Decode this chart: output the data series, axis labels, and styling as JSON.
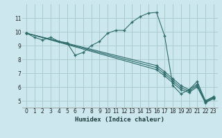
{
  "xlabel": "Humidex (Indice chaleur)",
  "bg_color": "#cce8ee",
  "grid_color": "#aacccc",
  "line_color": "#2e6b6b",
  "marker": "+",
  "xlim": [
    -0.5,
    23.5
  ],
  "ylim": [
    4.5,
    12.0
  ],
  "xticks": [
    0,
    1,
    2,
    3,
    4,
    5,
    6,
    7,
    8,
    9,
    10,
    11,
    12,
    13,
    14,
    15,
    16,
    17,
    18,
    19,
    20,
    21,
    22,
    23
  ],
  "yticks": [
    5,
    6,
    7,
    8,
    9,
    10,
    11
  ],
  "lines": [
    {
      "x": [
        0,
        1,
        2,
        3,
        4,
        5,
        6,
        7,
        8,
        9,
        10,
        11,
        12,
        13,
        14,
        15,
        16,
        17,
        18,
        19,
        20,
        21,
        22,
        23
      ],
      "y": [
        9.9,
        9.6,
        9.4,
        9.6,
        9.3,
        9.2,
        8.3,
        8.5,
        9.0,
        9.3,
        9.9,
        10.1,
        10.1,
        10.7,
        11.1,
        11.35,
        11.4,
        9.7,
        6.1,
        5.5,
        5.8,
        6.4,
        5.0,
        5.3
      ]
    },
    {
      "x": [
        0,
        16,
        17,
        18,
        19,
        20,
        21,
        22,
        23
      ],
      "y": [
        9.9,
        7.55,
        7.1,
        6.6,
        6.1,
        5.8,
        6.2,
        4.95,
        5.25
      ]
    },
    {
      "x": [
        0,
        16,
        17,
        18,
        19,
        20,
        21,
        22,
        23
      ],
      "y": [
        9.9,
        7.4,
        6.95,
        6.45,
        5.95,
        5.7,
        6.1,
        4.9,
        5.2
      ]
    },
    {
      "x": [
        0,
        16,
        17,
        18,
        19,
        20,
        21,
        22,
        23
      ],
      "y": [
        9.9,
        7.25,
        6.8,
        6.3,
        5.8,
        5.6,
        6.0,
        4.85,
        5.15
      ]
    }
  ]
}
